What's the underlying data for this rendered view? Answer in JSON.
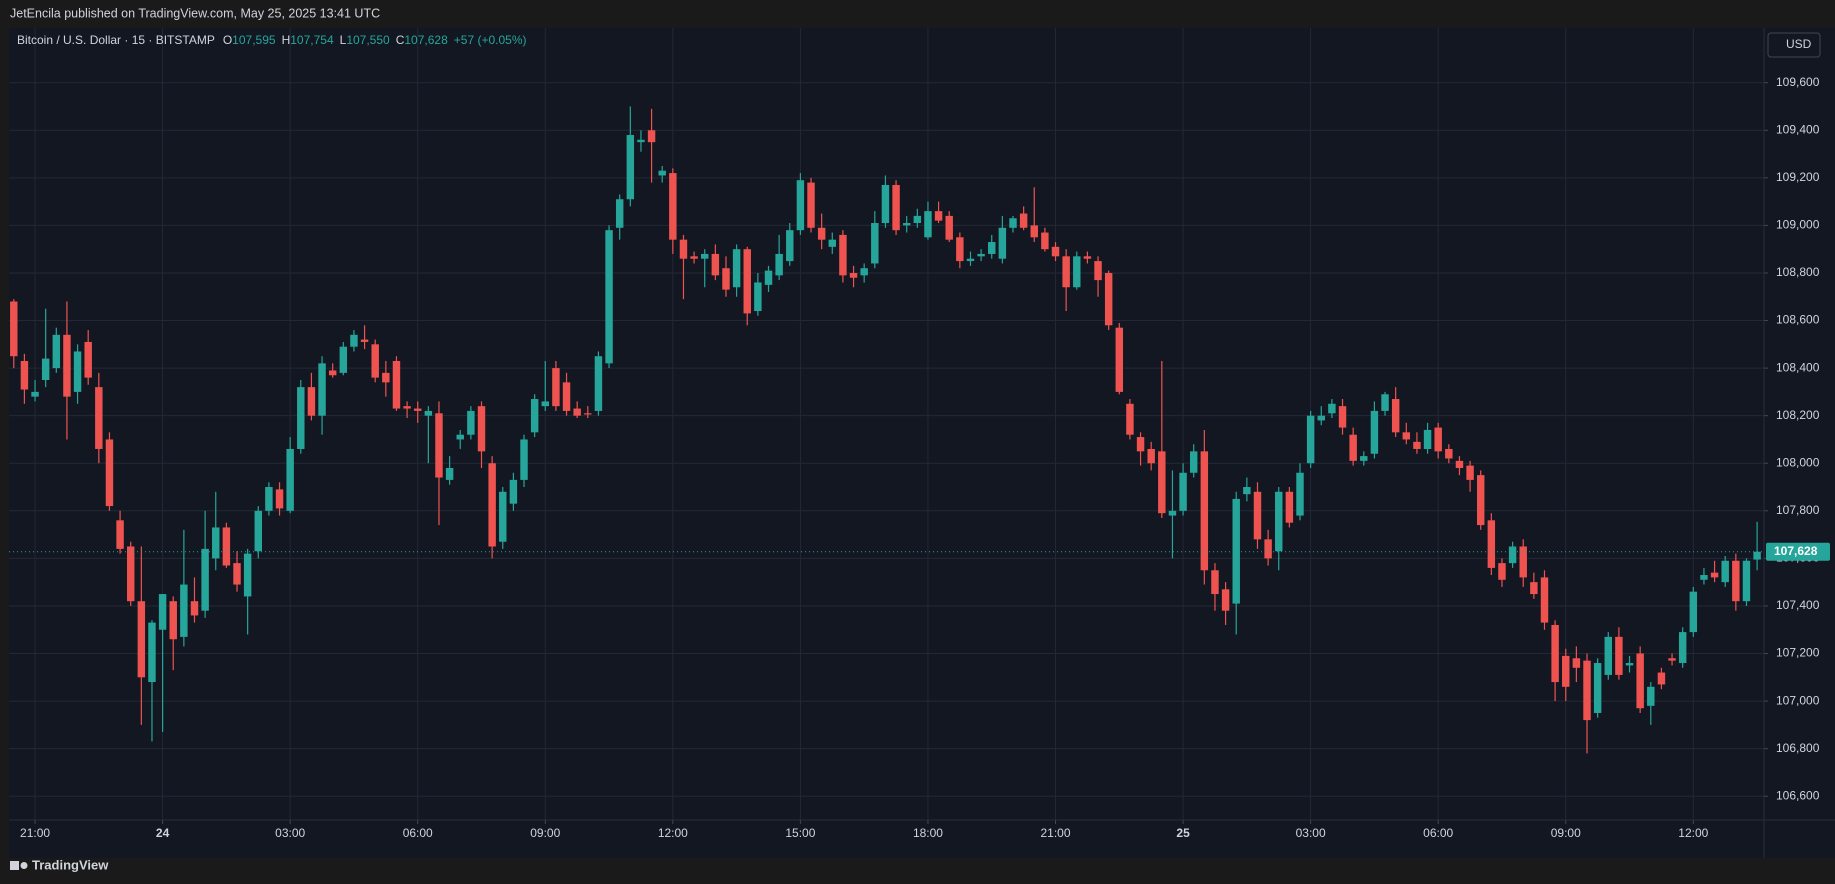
{
  "header": {
    "publisher": "JetEncila published on TradingView.com, May 25, 2025 13:41 UTC",
    "brand": "TradingView"
  },
  "chart_data": {
    "type": "candlestick",
    "symbol": "Bitcoin / U.S. Dollar · 15 · BITSTAMP",
    "legend_items": [
      {
        "key": "O",
        "value": "107,595"
      },
      {
        "key": "H",
        "value": "107,754"
      },
      {
        "key": "L",
        "value": "107,550"
      },
      {
        "key": "C",
        "value": "107,628"
      }
    ],
    "change": "+57 (+0.05%)",
    "currency": "USD",
    "up_color": "#26a69a",
    "down_color": "#ef5350",
    "last_price": {
      "value": 107628,
      "label": "107,628"
    },
    "xlim": [
      -0.45,
      164.65
    ],
    "xticks": [
      {
        "value": 2,
        "label": "21:00"
      },
      {
        "value": 14,
        "label": "24"
      },
      {
        "value": 26,
        "label": "03:00"
      },
      {
        "value": 38,
        "label": "06:00"
      },
      {
        "value": 50,
        "label": "09:00"
      },
      {
        "value": 62,
        "label": "12:00"
      },
      {
        "value": 74,
        "label": "15:00"
      },
      {
        "value": 86,
        "label": "18:00"
      },
      {
        "value": 98,
        "label": "21:00"
      },
      {
        "value": 110,
        "label": "25"
      },
      {
        "value": 122,
        "label": "03:00"
      },
      {
        "value": 134,
        "label": "06:00"
      },
      {
        "value": 146,
        "label": "09:00"
      },
      {
        "value": 158,
        "label": "12:00"
      }
    ],
    "ylim": [
      106500,
      109830
    ],
    "yticks": [
      {
        "value": 106600,
        "label": "106,600"
      },
      {
        "value": 106800,
        "label": "106,800"
      },
      {
        "value": 107000,
        "label": "107,000"
      },
      {
        "value": 107200,
        "label": "107,200"
      },
      {
        "value": 107400,
        "label": "107,400"
      },
      {
        "value": 107600,
        "label": "107,600"
      },
      {
        "value": 107800,
        "label": "107,800"
      },
      {
        "value": 108000,
        "label": "108,000"
      },
      {
        "value": 108200,
        "label": "108,200"
      },
      {
        "value": 108400,
        "label": "108,400"
      },
      {
        "value": 108600,
        "label": "108,600"
      },
      {
        "value": 108800,
        "label": "108,800"
      },
      {
        "value": 109000,
        "label": "109,000"
      },
      {
        "value": 109200,
        "label": "109,200"
      },
      {
        "value": 109400,
        "label": "109,400"
      },
      {
        "value": 109600,
        "label": "109,600"
      }
    ],
    "grid": true,
    "open": [
      108680,
      108430,
      108280,
      108350,
      108400,
      108540,
      108300,
      108510,
      108320,
      108100,
      107760,
      107650,
      107420,
      107080,
      107300,
      107420,
      107270,
      107420,
      107380,
      107600,
      107730,
      107580,
      107440,
      107630,
      107800,
      107890,
      107800,
      108060,
      108320,
      108200,
      108390,
      108380,
      108490,
      108520,
      108500,
      108380,
      108430,
      108240,
      108230,
      108200,
      108210,
      107930,
      108100,
      108120,
      108240,
      108000,
      107670,
      107830,
      107930,
      108130,
      108240,
      108400,
      108340,
      108230,
      108210,
      108220,
      108420,
      108990,
      109110,
      109350,
      109400,
      109210,
      109220,
      108940,
      108870,
      108860,
      108880,
      108820,
      108740,
      108900,
      108640,
      108750,
      108790,
      108850,
      108980,
      109180,
      108990,
      108910,
      108960,
      108800,
      108790,
      108840,
      109010,
      109170,
      109000,
      109010,
      108950,
      109060,
      109040,
      108950,
      108850,
      108870,
      108880,
      108860,
      108990,
      109050,
      109000,
      108970,
      108910,
      108870,
      108740,
      108870,
      108850,
      108800,
      108570,
      108250,
      108110,
      108060,
      108050,
      107780,
      107800,
      107960,
      108050,
      107550,
      107470,
      107410,
      107870,
      107880,
      107680,
      107630,
      107880,
      107780,
      108000,
      108180,
      108210,
      108240,
      108120,
      108010,
      108040,
      108220,
      108270,
      108130,
      108090,
      108060,
      108150,
      108060,
      108010,
      107990,
      107950,
      107760,
      107580,
      107580,
      107650,
      107500,
      107520,
      107320,
      107190,
      107180,
      107170,
      106950,
      107110,
      107270,
      107150,
      107200,
      106980,
      107120,
      107180,
      107160,
      107290,
      107510,
      107540,
      107500,
      107590,
      107420,
      107595
    ],
    "high": [
      108690,
      108460,
      108350,
      108650,
      108570,
      108680,
      108500,
      108560,
      108380,
      108130,
      107800,
      107670,
      107650,
      107340,
      107450,
      107440,
      107720,
      107520,
      107800,
      107880,
      107750,
      107630,
      107640,
      107820,
      107920,
      107920,
      108110,
      108350,
      108380,
      108450,
      108420,
      108510,
      108560,
      108580,
      108520,
      108430,
      108450,
      108260,
      108260,
      108240,
      108260,
      108030,
      108140,
      108240,
      108260,
      108030,
      107900,
      107960,
      108120,
      108290,
      108430,
      108430,
      108380,
      108260,
      108240,
      108470,
      109000,
      109130,
      109500,
      109400,
      109490,
      109250,
      109240,
      108960,
      108890,
      108900,
      108920,
      108870,
      108920,
      108910,
      108800,
      108830,
      108960,
      109010,
      109220,
      109200,
      109050,
      108970,
      108980,
      108830,
      108840,
      109060,
      109210,
      109190,
      109040,
      109070,
      109100,
      109100,
      109060,
      108970,
      108890,
      108900,
      108960,
      109040,
      109040,
      109080,
      109160,
      108990,
      108930,
      108900,
      108890,
      108890,
      108870,
      108810,
      108590,
      108270,
      108130,
      108090,
      108430,
      107970,
      108000,
      108080,
      108140,
      107580,
      107500,
      107880,
      107940,
      107920,
      107720,
      107900,
      107900,
      108000,
      108220,
      108240,
      108270,
      108270,
      108150,
      108050,
      108260,
      108300,
      108320,
      108170,
      108130,
      108170,
      108170,
      108080,
      108030,
      108010,
      107970,
      107790,
      107600,
      107670,
      107680,
      107540,
      107550,
      107340,
      107220,
      107230,
      107200,
      107180,
      107290,
      107310,
      107190,
      107230,
      107080,
      107140,
      107200,
      107310,
      107480,
      107560,
      107590,
      107610,
      107620,
      107600,
      107754
    ],
    "low": [
      108400,
      108250,
      108260,
      108320,
      108380,
      108100,
      108250,
      108330,
      108000,
      107800,
      107620,
      107400,
      106900,
      106830,
      106870,
      107130,
      107230,
      107330,
      107350,
      107550,
      107560,
      107460,
      107280,
      107600,
      107780,
      107780,
      107790,
      108040,
      108180,
      108120,
      108360,
      108370,
      108470,
      108480,
      108340,
      108280,
      108220,
      108190,
      108170,
      108000,
      107740,
      107910,
      108060,
      108100,
      107980,
      107600,
      107640,
      107800,
      107900,
      108110,
      108220,
      108220,
      108200,
      108190,
      108190,
      108200,
      108400,
      108940,
      109080,
      109310,
      109180,
      109180,
      108880,
      108690,
      108840,
      108740,
      108770,
      108700,
      108700,
      108580,
      108620,
      108720,
      108770,
      108830,
      108960,
      108970,
      108900,
      108880,
      108760,
      108740,
      108760,
      108820,
      108990,
      108960,
      108970,
      108990,
      108940,
      109010,
      108930,
      108820,
      108830,
      108850,
      108860,
      108840,
      108970,
      108980,
      108930,
      108890,
      108850,
      108640,
      108730,
      108840,
      108700,
      108560,
      108290,
      108100,
      107990,
      107970,
      107770,
      107600,
      107780,
      107940,
      107490,
      107380,
      107320,
      107280,
      107840,
      107640,
      107570,
      107550,
      107730,
      107760,
      107980,
      108160,
      108190,
      108120,
      107990,
      107990,
      108020,
      108200,
      108110,
      108080,
      108040,
      108040,
      108020,
      108000,
      107950,
      107880,
      107720,
      107530,
      107480,
      107560,
      107480,
      107430,
      107300,
      107000,
      107000,
      107080,
      106780,
      106930,
      107090,
      107090,
      107120,
      106950,
      106900,
      107050,
      107150,
      107140,
      107270,
      107490,
      107500,
      107480,
      107380,
      107400,
      107550
    ],
    "close": [
      108450,
      108310,
      108300,
      108440,
      108540,
      108280,
      108470,
      108360,
      108060,
      107820,
      107640,
      107420,
      107100,
      107330,
      107450,
      107260,
      107490,
      107360,
      107640,
      107730,
      107570,
      107490,
      107620,
      107800,
      107900,
      107810,
      108060,
      108320,
      108200,
      108420,
      108370,
      108490,
      108540,
      108510,
      108360,
      108340,
      108230,
      108230,
      108220,
      108220,
      107940,
      107980,
      108120,
      108220,
      108050,
      107650,
      107880,
      107930,
      108100,
      108270,
      108260,
      108240,
      108220,
      108200,
      108205,
      108450,
      108980,
      109110,
      109380,
      109360,
      109350,
      109230,
      108940,
      108860,
      108860,
      108880,
      108790,
      108730,
      108900,
      108630,
      108760,
      108810,
      108880,
      108980,
      109190,
      108990,
      108940,
      108940,
      108790,
      108780,
      108820,
      109010,
      109170,
      108980,
      109010,
      109040,
      109060,
      109020,
      108940,
      108850,
      108860,
      108880,
      108930,
      108990,
      109030,
      108990,
      108950,
      108900,
      108870,
      108740,
      108870,
      108860,
      108770,
      108580,
      108300,
      108120,
      108050,
      108000,
      107790,
      107800,
      107960,
      108050,
      107550,
      107450,
      107380,
      107850,
      107900,
      107680,
      107600,
      107880,
      107750,
      107960,
      108200,
      108200,
      108250,
      108150,
      108010,
      108030,
      108220,
      108290,
      108130,
      108100,
      108060,
      108140,
      108050,
      108020,
      107980,
      107930,
      107740,
      107560,
      107510,
      107650,
      107520,
      107450,
      107330,
      107080,
      107060,
      107140,
      106920,
      107160,
      107270,
      107110,
      107160,
      106970,
      107060,
      107070,
      107170,
      107290,
      107460,
      107530,
      107520,
      107590,
      107420,
      107590,
      107628
    ]
  }
}
